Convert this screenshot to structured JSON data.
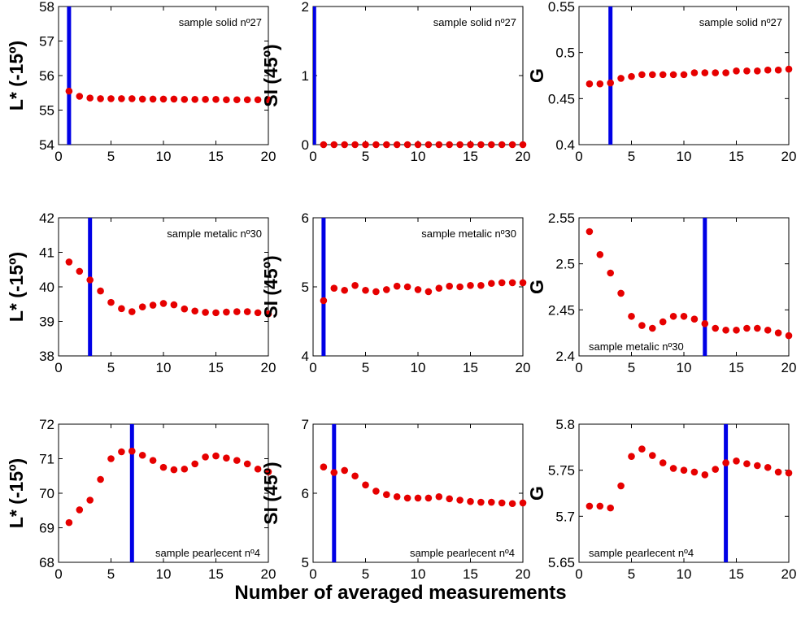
{
  "figure": {
    "xlabel": "Number of averaged measurements"
  },
  "chart_data": [
    {
      "type": "scatter",
      "ylabel": "L* (-15º)",
      "annotation": "sample solid nº27",
      "annotation_pos": "top-right",
      "xlim": [
        0,
        20
      ],
      "ylim": [
        54,
        58
      ],
      "xticks": [
        0,
        5,
        10,
        15,
        20
      ],
      "yticks": [
        54,
        55,
        56,
        57,
        58
      ],
      "marker_color": "#e60000",
      "vline_color": "#0000e6",
      "vline_x": 1,
      "x": [
        1,
        2,
        3,
        4,
        5,
        6,
        7,
        8,
        9,
        10,
        11,
        12,
        13,
        14,
        15,
        16,
        17,
        18,
        19,
        20
      ],
      "y": [
        55.55,
        55.4,
        55.35,
        55.33,
        55.33,
        55.33,
        55.33,
        55.32,
        55.32,
        55.32,
        55.32,
        55.31,
        55.31,
        55.31,
        55.31,
        55.3,
        55.3,
        55.3,
        55.3,
        55.3
      ]
    },
    {
      "type": "scatter",
      "ylabel": "SI (45º)",
      "annotation": "sample solid nº27",
      "annotation_pos": "top-right",
      "xlim": [
        0,
        20
      ],
      "ylim": [
        0,
        2
      ],
      "xticks": [
        0,
        5,
        10,
        15,
        20
      ],
      "yticks": [
        0,
        1,
        2
      ],
      "marker_color": "#e60000",
      "vline_color": "#0000e6",
      "vline_x": 0.1,
      "x": [
        1,
        2,
        3,
        4,
        5,
        6,
        7,
        8,
        9,
        10,
        11,
        12,
        13,
        14,
        15,
        16,
        17,
        18,
        19,
        20
      ],
      "y": [
        0,
        0,
        0,
        0,
        0,
        0,
        0,
        0,
        0,
        0,
        0,
        0,
        0,
        0,
        0,
        0,
        0,
        0,
        0,
        0
      ]
    },
    {
      "type": "scatter",
      "ylabel": "G",
      "annotation": "sample solid nº27",
      "annotation_pos": "top-right",
      "xlim": [
        0,
        20
      ],
      "ylim": [
        0.4,
        0.55
      ],
      "xticks": [
        0,
        5,
        10,
        15,
        20
      ],
      "yticks": [
        0.4,
        0.45,
        0.5,
        0.55
      ],
      "marker_color": "#e60000",
      "vline_color": "#0000e6",
      "vline_x": 3,
      "x": [
        1,
        2,
        3,
        4,
        5,
        6,
        7,
        8,
        9,
        10,
        11,
        12,
        13,
        14,
        15,
        16,
        17,
        18,
        19,
        20
      ],
      "y": [
        0.466,
        0.466,
        0.467,
        0.472,
        0.474,
        0.476,
        0.476,
        0.476,
        0.476,
        0.476,
        0.478,
        0.478,
        0.478,
        0.478,
        0.48,
        0.48,
        0.48,
        0.481,
        0.481,
        0.482
      ]
    },
    {
      "type": "scatter",
      "ylabel": "L* (-15º)",
      "annotation": "sample metalic nº30",
      "annotation_pos": "top-right",
      "xlim": [
        0,
        20
      ],
      "ylim": [
        38,
        42
      ],
      "xticks": [
        0,
        5,
        10,
        15,
        20
      ],
      "yticks": [
        38,
        39,
        40,
        41,
        42
      ],
      "marker_color": "#e60000",
      "vline_color": "#0000e6",
      "vline_x": 3,
      "x": [
        1,
        2,
        3,
        4,
        5,
        6,
        7,
        8,
        9,
        10,
        11,
        12,
        13,
        14,
        15,
        16,
        17,
        18,
        19,
        20
      ],
      "y": [
        40.72,
        40.45,
        40.2,
        39.88,
        39.55,
        39.37,
        39.28,
        39.42,
        39.47,
        39.52,
        39.48,
        39.36,
        39.3,
        39.26,
        39.25,
        39.27,
        39.28,
        39.28,
        39.25,
        39.22
      ]
    },
    {
      "type": "scatter",
      "ylabel": "SI (45º)",
      "annotation": "sample metalic nº30",
      "annotation_pos": "top-right",
      "xlim": [
        0,
        20
      ],
      "ylim": [
        4,
        6
      ],
      "xticks": [
        0,
        5,
        10,
        15,
        20
      ],
      "yticks": [
        4,
        5,
        6
      ],
      "marker_color": "#e60000",
      "vline_color": "#0000e6",
      "vline_x": 1,
      "x": [
        1,
        2,
        3,
        4,
        5,
        6,
        7,
        8,
        9,
        10,
        11,
        12,
        13,
        14,
        15,
        16,
        17,
        18,
        19,
        20
      ],
      "y": [
        4.8,
        4.98,
        4.95,
        5.02,
        4.95,
        4.93,
        4.96,
        5.01,
        5.0,
        4.96,
        4.93,
        4.98,
        5.01,
        5.0,
        5.02,
        5.02,
        5.05,
        5.06,
        5.06,
        5.06
      ]
    },
    {
      "type": "scatter",
      "ylabel": "G",
      "annotation": "sample metalic nº30",
      "annotation_pos": "bottom-left",
      "xlim": [
        0,
        20
      ],
      "ylim": [
        2.4,
        2.55
      ],
      "xticks": [
        0,
        5,
        10,
        15,
        20
      ],
      "yticks": [
        2.4,
        2.45,
        2.5,
        2.55
      ],
      "marker_color": "#e60000",
      "vline_color": "#0000e6",
      "vline_x": 12,
      "x": [
        1,
        2,
        3,
        4,
        5,
        6,
        7,
        8,
        9,
        10,
        11,
        12,
        13,
        14,
        15,
        16,
        17,
        18,
        19,
        20
      ],
      "y": [
        2.535,
        2.51,
        2.49,
        2.468,
        2.443,
        2.433,
        2.43,
        2.437,
        2.443,
        2.443,
        2.44,
        2.435,
        2.43,
        2.428,
        2.428,
        2.43,
        2.43,
        2.428,
        2.425,
        2.422
      ]
    },
    {
      "type": "scatter",
      "ylabel": "L* (-15º)",
      "annotation": "sample pearlecent nº4",
      "annotation_pos": "bottom-right",
      "xlim": [
        0,
        20
      ],
      "ylim": [
        68,
        72
      ],
      "xticks": [
        0,
        5,
        10,
        15,
        20
      ],
      "yticks": [
        68,
        69,
        70,
        71,
        72
      ],
      "marker_color": "#e60000",
      "vline_color": "#0000e6",
      "vline_x": 7,
      "x": [
        1,
        2,
        3,
        4,
        5,
        6,
        7,
        8,
        9,
        10,
        11,
        12,
        13,
        14,
        15,
        16,
        17,
        18,
        19,
        20
      ],
      "y": [
        69.15,
        69.52,
        69.8,
        70.4,
        71.0,
        71.2,
        71.22,
        71.1,
        70.95,
        70.75,
        70.68,
        70.7,
        70.85,
        71.05,
        71.08,
        71.02,
        70.95,
        70.85,
        70.7,
        70.62
      ]
    },
    {
      "type": "scatter",
      "ylabel": "SI (45º)",
      "annotation": "sample pearlecent nº4",
      "annotation_pos": "bottom-right",
      "xlim": [
        0,
        20
      ],
      "ylim": [
        5,
        7
      ],
      "xticks": [
        0,
        5,
        10,
        15,
        20
      ],
      "yticks": [
        5,
        6,
        7
      ],
      "marker_color": "#e60000",
      "vline_color": "#0000e6",
      "vline_x": 2,
      "x": [
        1,
        2,
        3,
        4,
        5,
        6,
        7,
        8,
        9,
        10,
        11,
        12,
        13,
        14,
        15,
        16,
        17,
        18,
        19,
        20
      ],
      "y": [
        6.38,
        6.3,
        6.33,
        6.25,
        6.12,
        6.03,
        5.98,
        5.95,
        5.93,
        5.93,
        5.93,
        5.95,
        5.92,
        5.9,
        5.88,
        5.87,
        5.87,
        5.86,
        5.85,
        5.86
      ]
    },
    {
      "type": "scatter",
      "ylabel": "G",
      "annotation": "sample pearlecent nº4",
      "annotation_pos": "bottom-left",
      "xlim": [
        0,
        20
      ],
      "ylim": [
        5.65,
        5.8
      ],
      "xticks": [
        0,
        5,
        10,
        15,
        20
      ],
      "yticks": [
        5.65,
        5.7,
        5.75,
        5.8
      ],
      "marker_color": "#e60000",
      "vline_color": "#0000e6",
      "vline_x": 14,
      "x": [
        1,
        2,
        3,
        4,
        5,
        6,
        7,
        8,
        9,
        10,
        11,
        12,
        13,
        14,
        15,
        16,
        17,
        18,
        19,
        20
      ],
      "y": [
        5.711,
        5.711,
        5.709,
        5.733,
        5.765,
        5.773,
        5.766,
        5.758,
        5.752,
        5.75,
        5.748,
        5.745,
        5.751,
        5.758,
        5.76,
        5.757,
        5.755,
        5.753,
        5.748,
        5.747
      ]
    }
  ]
}
